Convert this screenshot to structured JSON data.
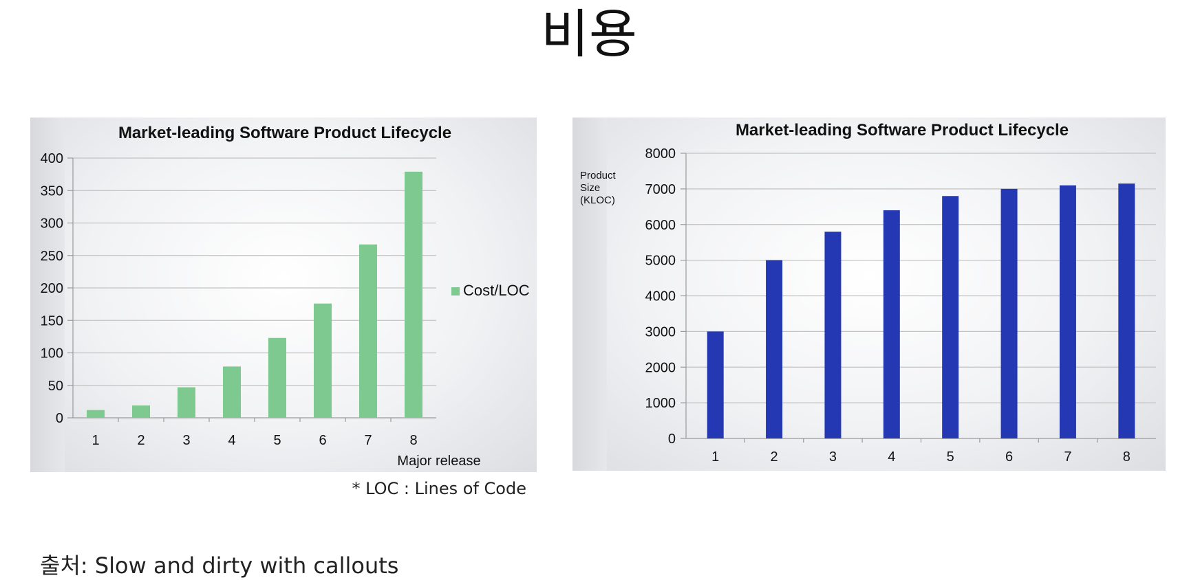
{
  "slide": {
    "title": "비용",
    "footnote": "* LOC : Lines of Code",
    "source": "출처: Slow and dirty with callouts"
  },
  "chart_data": [
    {
      "type": "bar",
      "title": "Market-leading Software Product Lifecycle",
      "xlabel": "Major release",
      "ylabel": "",
      "categories": [
        "1",
        "2",
        "3",
        "4",
        "5",
        "6",
        "7",
        "8"
      ],
      "series": [
        {
          "name": "Cost/LOC",
          "color": "#7ec98f",
          "values": [
            12,
            19,
            47,
            79,
            123,
            176,
            267,
            379
          ]
        }
      ],
      "ylim": [
        0,
        400
      ],
      "yticks": [
        "0",
        "50",
        "100",
        "150",
        "200",
        "250",
        "300",
        "350",
        "400"
      ],
      "grid": true,
      "legend": "right"
    },
    {
      "type": "bar",
      "title": "Market-leading Software Product Lifecycle",
      "xlabel": "",
      "ylabel": "Product Size (KLOC)",
      "ylabel_lines": [
        "Product",
        "Size",
        "(KLOC)"
      ],
      "categories": [
        "1",
        "2",
        "3",
        "4",
        "5",
        "6",
        "7",
        "8"
      ],
      "series": [
        {
          "color": "#2438b4",
          "values": [
            3000,
            5000,
            5800,
            6400,
            6800,
            7000,
            7100,
            7150
          ]
        }
      ],
      "ylim": [
        0,
        8000
      ],
      "yticks": [
        "0",
        "1000",
        "2000",
        "3000",
        "4000",
        "5000",
        "6000",
        "7000",
        "8000"
      ],
      "grid": true,
      "legend": "none"
    }
  ]
}
